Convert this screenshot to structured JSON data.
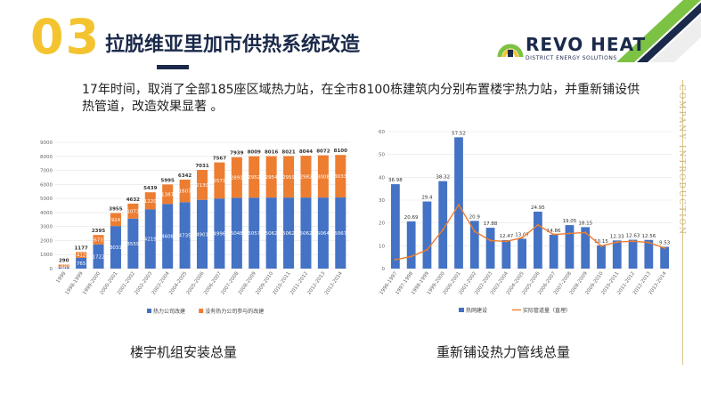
{
  "header": {
    "number": "03",
    "title": "拉脱维亚里加市供热系统改造"
  },
  "logo": {
    "name_part1": "REVO",
    "name_part2": "HEAT",
    "tagline": "DISTRICT ENERGY SOLUTIONS",
    "accent_colors": [
      "#7cc243",
      "#f4c430",
      "#1b2a4a"
    ]
  },
  "side_text": "COMPANY INTRODUCTION",
  "description": "17年时间，取消了全部185座区域热力站，在全市8100栋建筑内分别布置楼宇热力站，并重新铺设供热管道，改造效果显著 。",
  "captions": {
    "left": "楼宇机组安装总量",
    "right": "重新铺设热力管线总量"
  },
  "chart_data": [
    {
      "type": "bar",
      "stacked": true,
      "categories": [
        "1998",
        "1998-1999",
        "1999-2000",
        "2000-2001",
        "2001-2002",
        "2002-2003",
        "2003-2004",
        "2004-2005",
        "2005-2006",
        "2006-2007",
        "2007-2008",
        "2008-2009",
        "2009-2010",
        "2010-2011",
        "2011-2012",
        "2012-2013",
        "2013-2014"
      ],
      "series": [
        {
          "name": "热力公司改建",
          "color": "#4472c4",
          "values": [
            90,
            765,
            1722,
            3031,
            3559,
            4219,
            4608,
            4735,
            4901,
            4996,
            5048,
            5057,
            5062,
            5062,
            5062,
            5064,
            5067
          ]
        },
        {
          "name": "没有热力公司参与的改建",
          "color": "#ed7d31",
          "values": [
            200,
            412,
            673,
            924,
            1073,
            1220,
            1387,
            1607,
            2130,
            2571,
            2891,
            2952,
            2954,
            2959,
            2982,
            3008,
            3033
          ]
        }
      ],
      "totals": [
        290,
        1177,
        2395,
        3955,
        4632,
        5439,
        5995,
        6342,
        7031,
        7567,
        7939,
        8009,
        8016,
        8021,
        8044,
        8072,
        8100
      ],
      "ylim": [
        0,
        9000
      ],
      "yticks": [
        0,
        1000,
        2000,
        3000,
        4000,
        5000,
        6000,
        7000,
        8000,
        9000
      ],
      "legend": "bottom",
      "grid": true
    },
    {
      "type": "bar+line",
      "categories": [
        "1996-1997",
        "1997-1998",
        "1998-1999",
        "1999-2000",
        "2000-2001",
        "2001-2002",
        "2002-2003",
        "2003-2004",
        "2004-2005",
        "2005-2006",
        "2006-2007",
        "2007-2008",
        "2008-2009",
        "2009-2010",
        "2010-2011",
        "2011-2012",
        "2012-2013",
        "2013-2014"
      ],
      "series": [
        {
          "name": "热网建设",
          "type": "bar",
          "color": "#4472c4",
          "values": [
            36.98,
            20.69,
            29.4,
            38.32,
            57.52,
            20.9,
            17.88,
            12.47,
            13.07,
            24.95,
            14.86,
            19.05,
            18.15,
            10.15,
            12.33,
            12.63,
            12.56,
            9.53
          ]
        },
        {
          "name": "实际管道量（直埋）",
          "type": "line",
          "color": "#ed7d31",
          "values": [
            3.9,
            5.3,
            8.2,
            17.0,
            27.9,
            16.3,
            12.3,
            11.9,
            13.5,
            19.1,
            14.9,
            15.4,
            15.8,
            9.9,
            11.6,
            12.0,
            11.4,
            9.0
          ]
        }
      ],
      "ylim": [
        0,
        60
      ],
      "yticks": [
        0,
        10,
        20,
        30,
        40,
        50,
        60
      ],
      "legend": "bottom",
      "grid": true
    }
  ]
}
